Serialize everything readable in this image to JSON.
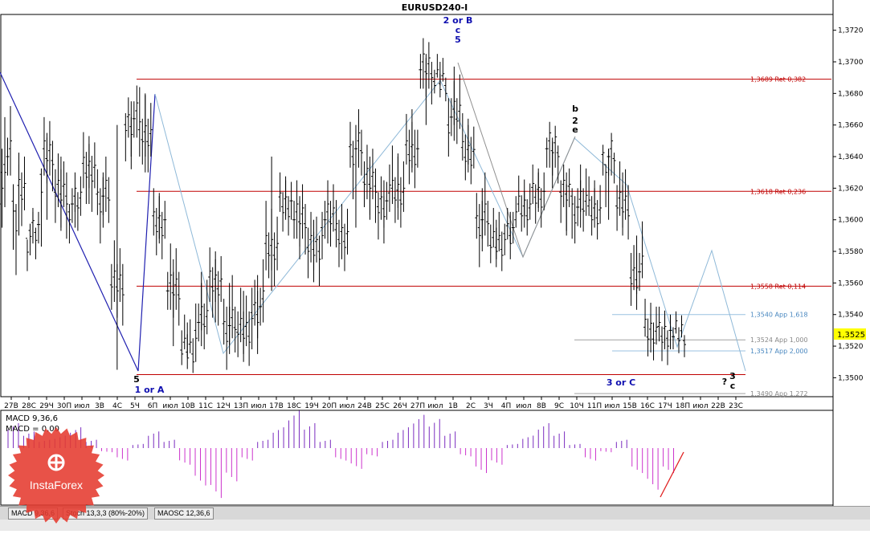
{
  "chart_data": {
    "type": "candlestick",
    "title": "EURUSD240-I",
    "symbol": "EURUSD",
    "timeframe_minutes": 240,
    "y_ticks": [
      "1,3720",
      "1,3700",
      "1,3680",
      "1,3660",
      "1,3640",
      "1,3620",
      "1,3600",
      "1,3580",
      "1,3560",
      "1,3540",
      "1,3520",
      "1,3500"
    ],
    "y_range": [
      1.3488,
      1.373
    ],
    "x_labels": [
      "27В",
      "28С",
      "29Ч",
      "30П",
      "июл",
      "3В",
      "4С",
      "5Ч",
      "6П",
      "июл",
      "10В",
      "11С",
      "12Ч",
      "13П",
      "июл",
      "17В",
      "18С",
      "19Ч",
      "20П",
      "июл",
      "24В",
      "25С",
      "26Ч",
      "27П",
      "июл",
      "1В",
      "2С",
      "3Ч",
      "4П",
      "июл",
      "8В",
      "9С",
      "10Ч",
      "11П",
      "июл",
      "15В",
      "16С",
      "17Ч",
      "18П",
      "июл",
      "22В",
      "23С"
    ],
    "current_price": "1,3525",
    "price_path": [
      [
        1.364,
        1.3665,
        1.3615
      ],
      [
        1.3618,
        1.3635,
        1.359
      ],
      [
        1.3597,
        1.3605,
        1.3585
      ],
      [
        1.364,
        1.3655,
        1.36
      ],
      [
        1.362,
        1.364,
        1.3595
      ],
      [
        1.361,
        1.362,
        1.3595
      ],
      [
        1.3632,
        1.3648,
        1.361
      ],
      [
        1.3615,
        1.363,
        1.3595
      ],
      [
        1.356,
        1.366,
        1.3505
      ],
      [
        1.3664,
        1.3675,
        1.364
      ],
      [
        1.3652,
        1.368,
        1.363
      ],
      [
        1.36,
        1.3615,
        1.3585
      ],
      [
        1.3555,
        1.3575,
        1.352
      ],
      [
        1.352,
        1.3535,
        1.3513
      ],
      [
        1.3535,
        1.356,
        1.352
      ],
      [
        1.356,
        1.3575,
        1.3535
      ],
      [
        1.3533,
        1.356,
        1.3515
      ],
      [
        1.353,
        1.3555,
        1.3515
      ],
      [
        1.3545,
        1.3565,
        1.3525
      ],
      [
        1.358,
        1.364,
        1.3555
      ],
      [
        1.3612,
        1.3625,
        1.36
      ],
      [
        1.36,
        1.3615,
        1.3575
      ],
      [
        1.3585,
        1.36,
        1.3568
      ],
      [
        1.36,
        1.3615,
        1.3585
      ],
      [
        1.359,
        1.3605,
        1.3575
      ],
      [
        1.3645,
        1.366,
        1.3595
      ],
      [
        1.3625,
        1.364,
        1.36
      ],
      [
        1.3612,
        1.3625,
        1.3595
      ],
      [
        1.3615,
        1.364,
        1.36
      ],
      [
        1.3645,
        1.367,
        1.363
      ],
      [
        1.3695,
        1.3705,
        1.366
      ],
      [
        1.369,
        1.37,
        1.3685
      ],
      [
        1.3665,
        1.3688,
        1.365
      ],
      [
        1.3642,
        1.366,
        1.363
      ],
      [
        1.36,
        1.362,
        1.358
      ],
      [
        1.3585,
        1.36,
        1.3575
      ],
      [
        1.3595,
        1.3605,
        1.3585
      ],
      [
        1.3605,
        1.3618,
        1.3595
      ],
      [
        1.3618,
        1.363,
        1.3605
      ],
      [
        1.3645,
        1.3652,
        1.362
      ],
      [
        1.362,
        1.363,
        1.359
      ],
      [
        1.3608,
        1.3625,
        1.3595
      ],
      [
        1.3605,
        1.362,
        1.3595
      ],
      [
        1.364,
        1.3645,
        1.36
      ],
      [
        1.361,
        1.363,
        1.3595
      ],
      [
        1.3567,
        1.359,
        1.3553
      ],
      [
        1.3527,
        1.354,
        1.3516
      ],
      [
        1.353,
        1.354,
        1.3518
      ],
      [
        1.3526,
        1.3532,
        1.3518
      ]
    ],
    "levels": [
      {
        "label": "1,3689 Ret 0,382",
        "value": 1.3689,
        "kind": "red"
      },
      {
        "label": "1,3618 Ret 0,236",
        "value": 1.3618,
        "kind": "red"
      },
      {
        "label": "1,3558 Ret 0,114",
        "value": 1.3558,
        "kind": "red"
      },
      {
        "label": "1,3540 App 1,618",
        "value": 1.354,
        "kind": "blue"
      },
      {
        "label": "1,3524 App 1,000",
        "value": 1.3524,
        "kind": "gray"
      },
      {
        "label": "1,3517 App 2,000",
        "value": 1.3517,
        "kind": "blue"
      },
      {
        "label": "1,3490 App 1,272",
        "value": 1.349,
        "kind": "gray"
      }
    ],
    "wave_labels": [
      {
        "text": "2 or B",
        "color": "#1010b0"
      },
      {
        "text": "c",
        "color": "#1010b0"
      },
      {
        "text": "5",
        "color": "#1010b0"
      },
      {
        "text": "5",
        "color": "#000"
      },
      {
        "text": "1 or A",
        "color": "#1010b0"
      },
      {
        "text": "3 or C",
        "color": "#1010b0"
      },
      {
        "text": "b",
        "color": "#000"
      },
      {
        "text": "2",
        "color": "#000"
      },
      {
        "text": "e",
        "color": "#000"
      },
      {
        "text": "?",
        "color": "#000"
      },
      {
        "text": "3",
        "color": "#000"
      },
      {
        "text": "c",
        "color": "#000"
      }
    ],
    "macd": {
      "label_line1": "MACD 9,36,6",
      "label_line2": "MACD = 0,00",
      "histogram": [
        0.6,
        0.4,
        0.2,
        0.3,
        0.5,
        0.2,
        -0.1,
        -0.3,
        0.1,
        0.4,
        0.2,
        -0.4,
        -0.9,
        -1.2,
        -0.8,
        -0.3,
        0.2,
        0.5,
        0.9,
        0.6,
        0.2,
        -0.3,
        -0.5,
        -0.2,
        0.2,
        0.5,
        0.8,
        0.7,
        0.4,
        -0.2,
        -0.6,
        -0.4,
        0.1,
        0.3,
        0.6,
        0.4,
        0.1,
        -0.3,
        -0.1,
        0.2,
        -0.6,
        -1.0,
        -0.6
      ]
    },
    "tabs": [
      "MACD 9,36,6",
      "Stoch 13,3,3 (80%-20%)",
      "MAOSC 12,36,6"
    ],
    "logo_text": "InstaForex",
    "colors": {
      "red": "#c00000",
      "blue": "#1010b0",
      "gray": "#888888",
      "macd": "#cc33cc",
      "macd_pos": "#7a2bbf",
      "price_tag": "#ffff00"
    }
  }
}
